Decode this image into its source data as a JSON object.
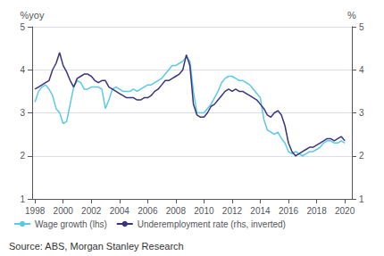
{
  "chart_data": {
    "type": "line",
    "ylabel": "%yoy",
    "y2label": "%",
    "annotations": [
      "Source: ABS, Morgan Stanley Research"
    ],
    "x": [
      1998.0,
      1998.25,
      1998.5,
      1998.75,
      1999.0,
      1999.25,
      1999.5,
      1999.75,
      2000.0,
      2000.25,
      2000.5,
      2000.75,
      2001.0,
      2001.25,
      2001.5,
      2001.75,
      2002.0,
      2002.25,
      2002.5,
      2002.75,
      2003.0,
      2003.25,
      2003.5,
      2003.75,
      2004.0,
      2004.25,
      2004.5,
      2004.75,
      2005.0,
      2005.25,
      2005.5,
      2005.75,
      2006.0,
      2006.25,
      2006.5,
      2006.75,
      2007.0,
      2007.25,
      2007.5,
      2007.75,
      2008.0,
      2008.25,
      2008.5,
      2008.75,
      2009.0,
      2009.25,
      2009.5,
      2009.75,
      2010.0,
      2010.25,
      2010.5,
      2010.75,
      2011.0,
      2011.25,
      2011.5,
      2011.75,
      2012.0,
      2012.25,
      2012.5,
      2012.75,
      2013.0,
      2013.25,
      2013.5,
      2013.75,
      2014.0,
      2014.25,
      2014.5,
      2014.75,
      2015.0,
      2015.25,
      2015.5,
      2015.75,
      2016.0,
      2016.25,
      2016.5,
      2016.75,
      2017.0,
      2017.25,
      2017.5,
      2017.75,
      2018.0,
      2018.25,
      2018.5,
      2018.75,
      2019.0,
      2019.25,
      2019.5,
      2019.75,
      2020.0
    ],
    "series": [
      {
        "name": "Wage growth (lhs)",
        "color": "#5bc8e8",
        "values": [
          3.25,
          3.5,
          3.6,
          3.65,
          3.55,
          3.4,
          3.1,
          3.0,
          2.75,
          2.8,
          3.2,
          3.6,
          3.75,
          3.7,
          3.55,
          3.55,
          3.6,
          3.6,
          3.6,
          3.55,
          3.1,
          3.3,
          3.55,
          3.6,
          3.55,
          3.5,
          3.5,
          3.5,
          3.55,
          3.5,
          3.55,
          3.6,
          3.65,
          3.65,
          3.7,
          3.75,
          3.8,
          3.9,
          4.0,
          4.1,
          4.1,
          4.15,
          4.2,
          4.3,
          4.2,
          3.5,
          3.0,
          3.0,
          3.0,
          3.1,
          3.2,
          3.35,
          3.5,
          3.7,
          3.8,
          3.85,
          3.85,
          3.8,
          3.75,
          3.75,
          3.7,
          3.65,
          3.55,
          3.45,
          3.35,
          2.85,
          2.6,
          2.55,
          2.5,
          2.55,
          2.4,
          2.3,
          2.1,
          2.05,
          2.1,
          2.05,
          2.0,
          2.05,
          2.1,
          2.1,
          2.15,
          2.2,
          2.3,
          2.35,
          2.35,
          2.3,
          2.3,
          2.35,
          2.3
        ]
      },
      {
        "name": "Underemployment rate (rhs, inverted)",
        "color": "#3a3480",
        "axis": "y2",
        "values": [
          3.55,
          3.6,
          3.65,
          3.7,
          3.75,
          4.0,
          4.15,
          4.4,
          4.1,
          3.95,
          3.75,
          3.6,
          3.8,
          3.85,
          3.9,
          3.9,
          3.85,
          3.75,
          3.7,
          3.75,
          3.75,
          3.6,
          3.55,
          3.5,
          3.45,
          3.4,
          3.35,
          3.35,
          3.35,
          3.3,
          3.3,
          3.35,
          3.35,
          3.4,
          3.5,
          3.55,
          3.65,
          3.75,
          3.75,
          3.8,
          3.85,
          3.9,
          4.0,
          4.35,
          4.1,
          3.2,
          2.95,
          2.9,
          2.9,
          3.0,
          3.15,
          3.2,
          3.3,
          3.4,
          3.5,
          3.55,
          3.5,
          3.55,
          3.5,
          3.5,
          3.45,
          3.4,
          3.35,
          3.3,
          3.2,
          3.1,
          2.95,
          2.9,
          3.0,
          3.05,
          2.95,
          2.7,
          2.3,
          2.1,
          2.0,
          2.05,
          2.1,
          2.15,
          2.2,
          2.2,
          2.25,
          2.3,
          2.35,
          2.4,
          2.4,
          2.35,
          2.4,
          2.45,
          2.35
        ]
      }
    ],
    "xlim": [
      1997.8,
      2020.5
    ],
    "xticks": [
      1998,
      2000,
      2002,
      2004,
      2006,
      2008,
      2010,
      2012,
      2014,
      2016,
      2018,
      2020
    ],
    "ylim": [
      1,
      5
    ],
    "yticks": [
      1,
      2,
      3,
      4,
      5
    ],
    "y2lim": [
      1,
      5
    ],
    "y2ticks": [
      1,
      2,
      3,
      4,
      5
    ],
    "grid": true,
    "legend": "lower left"
  }
}
